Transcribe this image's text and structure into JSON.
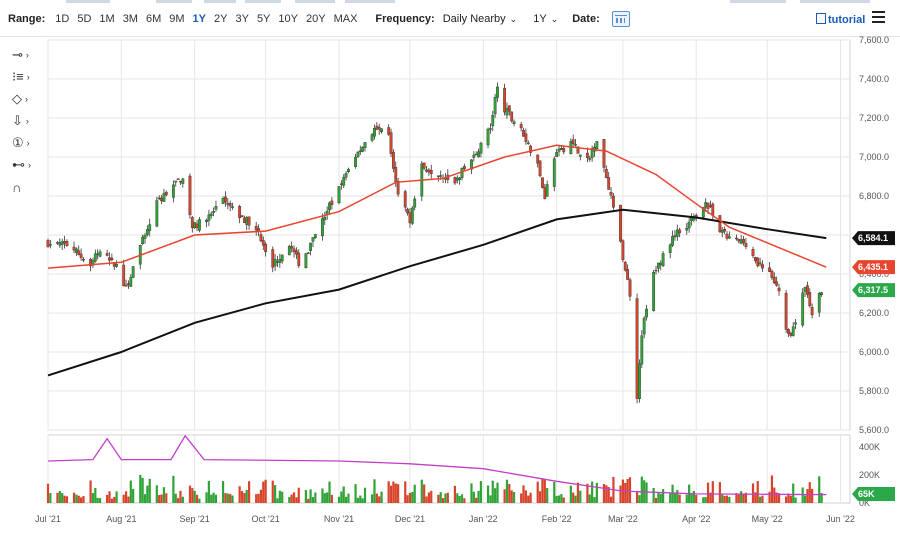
{
  "toolbar": {
    "range_label": "Range:",
    "ranges": [
      "1D",
      "5D",
      "1M",
      "3M",
      "6M",
      "9M",
      "1Y",
      "2Y",
      "3Y",
      "5Y",
      "10Y",
      "20Y",
      "MAX"
    ],
    "active_range": "1Y",
    "frequency_label": "Frequency:",
    "frequency_value": "Daily Nearby",
    "period_value": "1Y",
    "date_label": "Date:",
    "tutorial_label": "tutorial"
  },
  "tools": [
    {
      "name": "crosshair-tool",
      "icon": "⊸"
    },
    {
      "name": "lines-tool",
      "icon": "⁝≡"
    },
    {
      "name": "shapes-tool",
      "icon": "◇"
    },
    {
      "name": "arrow-tool",
      "icon": "⇩"
    },
    {
      "name": "annotation-tool",
      "icon": "①"
    },
    {
      "name": "fib-tool",
      "icon": "⊷"
    },
    {
      "name": "magnet-tool",
      "icon": "∩"
    }
  ],
  "colors": {
    "up": "#2fa336",
    "down": "#d8432b",
    "ma_short": "#e8452e",
    "ma_long": "#111111",
    "vol_avg": "#c23fc9",
    "grid": "#e6e6e6",
    "tag_price": "#2ba84a",
    "tag_ma_short": "#e8452e",
    "tag_ma_long": "#111111",
    "tag_vol": "#2ba84a"
  },
  "chart_data": {
    "type": "candlestick",
    "title": "",
    "x_range": [
      "2021-07-01",
      "2022-06-05"
    ],
    "price_axis": {
      "range": [
        5600,
        7600
      ],
      "ticks": [
        "7,600.0",
        "7,400.0",
        "7,200.0",
        "7,000.0",
        "6,800.0",
        "6,600.0",
        "6,400.0",
        "6,200.0",
        "6,000.0",
        "5,800.0",
        "5,600.0"
      ]
    },
    "x_ticks": [
      {
        "date": "2021-07-01",
        "label": "Jul '21"
      },
      {
        "date": "2021-08-01",
        "label": "Aug '21"
      },
      {
        "date": "2021-09-01",
        "label": "Sep '21"
      },
      {
        "date": "2021-10-01",
        "label": "Oct '21"
      },
      {
        "date": "2021-11-01",
        "label": "Nov '21"
      },
      {
        "date": "2021-12-01",
        "label": "Dec '21"
      },
      {
        "date": "2022-01-01",
        "label": "Jan '22"
      },
      {
        "date": "2022-02-01",
        "label": "Feb '22"
      },
      {
        "date": "2022-03-01",
        "label": "Mar '22"
      },
      {
        "date": "2022-04-01",
        "label": "Apr '22"
      },
      {
        "date": "2022-05-01",
        "label": "May '22"
      },
      {
        "date": "2022-06-01",
        "label": "Jun '22"
      }
    ],
    "close_path": [
      [
        "2021-07-01",
        6560
      ],
      [
        "2021-07-10",
        6550
      ],
      [
        "2021-07-19",
        6440
      ],
      [
        "2021-07-22",
        6510
      ],
      [
        "2021-07-30",
        6440
      ],
      [
        "2021-08-03",
        6320
      ],
      [
        "2021-08-09",
        6540
      ],
      [
        "2021-08-16",
        6760
      ],
      [
        "2021-08-23",
        6860
      ],
      [
        "2021-08-27",
        6900
      ],
      [
        "2021-08-31",
        6640
      ],
      [
        "2021-09-06",
        6680
      ],
      [
        "2021-09-13",
        6770
      ],
      [
        "2021-09-20",
        6700
      ],
      [
        "2021-09-27",
        6640
      ],
      [
        "2021-10-04",
        6450
      ],
      [
        "2021-10-11",
        6550
      ],
      [
        "2021-10-15",
        6460
      ],
      [
        "2021-10-19",
        6520
      ],
      [
        "2021-10-26",
        6700
      ],
      [
        "2021-11-02",
        6860
      ],
      [
        "2021-11-09",
        7020
      ],
      [
        "2021-11-16",
        7150
      ],
      [
        "2021-11-22",
        7100
      ],
      [
        "2021-11-26",
        6820
      ],
      [
        "2021-12-01",
        6680
      ],
      [
        "2021-12-06",
        6950
      ],
      [
        "2021-12-13",
        6920
      ],
      [
        "2021-12-20",
        6880
      ],
      [
        "2021-12-27",
        6980
      ],
      [
        "2022-01-04",
        7150
      ],
      [
        "2022-01-07",
        7360
      ],
      [
        "2022-01-10",
        7250
      ],
      [
        "2022-01-18",
        7120
      ],
      [
        "2022-01-24",
        6950
      ],
      [
        "2022-01-27",
        6800
      ],
      [
        "2022-01-31",
        7000
      ],
      [
        "2022-02-07",
        7080
      ],
      [
        "2022-02-14",
        6980
      ],
      [
        "2022-02-18",
        7100
      ],
      [
        "2022-02-24",
        6800
      ],
      [
        "2022-02-28",
        6550
      ],
      [
        "2022-03-04",
        6300
      ],
      [
        "2022-03-07",
        5780
      ],
      [
        "2022-03-09",
        6100
      ],
      [
        "2022-03-14",
        6400
      ],
      [
        "2022-03-18",
        6500
      ],
      [
        "2022-03-24",
        6620
      ],
      [
        "2022-03-31",
        6680
      ],
      [
        "2022-04-05",
        6780
      ],
      [
        "2022-04-11",
        6620
      ],
      [
        "2022-04-15",
        6580
      ],
      [
        "2022-04-22",
        6560
      ],
      [
        "2022-04-27",
        6450
      ],
      [
        "2022-05-02",
        6400
      ],
      [
        "2022-05-06",
        6300
      ],
      [
        "2022-05-10",
        6080
      ],
      [
        "2022-05-13",
        6150
      ],
      [
        "2022-05-17",
        6330
      ],
      [
        "2022-05-20",
        6190
      ],
      [
        "2022-05-24",
        6317.5
      ]
    ],
    "series": [
      {
        "name": "",
        "kind": "moving-average-short",
        "points": [
          [
            "2021-07-01",
            6430
          ],
          [
            "2021-08-01",
            6460
          ],
          [
            "2021-09-01",
            6600
          ],
          [
            "2021-10-01",
            6620
          ],
          [
            "2021-11-01",
            6720
          ],
          [
            "2021-11-25",
            6870
          ],
          [
            "2021-12-15",
            6890
          ],
          [
            "2022-01-10",
            7000
          ],
          [
            "2022-02-01",
            7060
          ],
          [
            "2022-02-22",
            7030
          ],
          [
            "2022-03-15",
            6910
          ],
          [
            "2022-04-01",
            6760
          ],
          [
            "2022-04-15",
            6640
          ],
          [
            "2022-05-01",
            6560
          ],
          [
            "2022-05-26",
            6435.1
          ]
        ]
      },
      {
        "name": "",
        "kind": "moving-average-long",
        "points": [
          [
            "2021-07-01",
            5880
          ],
          [
            "2021-08-01",
            6000
          ],
          [
            "2021-09-01",
            6150
          ],
          [
            "2021-10-01",
            6250
          ],
          [
            "2021-11-01",
            6320
          ],
          [
            "2021-12-01",
            6440
          ],
          [
            "2022-01-01",
            6550
          ],
          [
            "2022-02-01",
            6680
          ],
          [
            "2022-03-01",
            6730
          ],
          [
            "2022-04-01",
            6690
          ],
          [
            "2022-05-01",
            6630
          ],
          [
            "2022-05-26",
            6584.1
          ]
        ]
      }
    ],
    "current_tags": {
      "price": "6,317.5",
      "ma_short": "6,435.1",
      "ma_long": "6,584.1"
    },
    "volume": {
      "axis_ticks": [
        "400K",
        "200K",
        "0K"
      ],
      "axis_range": [
        0,
        450
      ],
      "tag": "65K",
      "average": [
        [
          "2021-07-01",
          300
        ],
        [
          "2021-07-20",
          310
        ],
        [
          "2021-07-26",
          460
        ],
        [
          "2021-08-01",
          310
        ],
        [
          "2021-08-22",
          310
        ],
        [
          "2021-08-28",
          480
        ],
        [
          "2021-09-05",
          310
        ],
        [
          "2021-11-01",
          300
        ],
        [
          "2021-12-01",
          280
        ],
        [
          "2022-01-01",
          245
        ],
        [
          "2022-02-01",
          155
        ],
        [
          "2022-03-01",
          85
        ],
        [
          "2022-04-01",
          65
        ],
        [
          "2022-05-01",
          62
        ],
        [
          "2022-05-26",
          60
        ]
      ]
    }
  }
}
